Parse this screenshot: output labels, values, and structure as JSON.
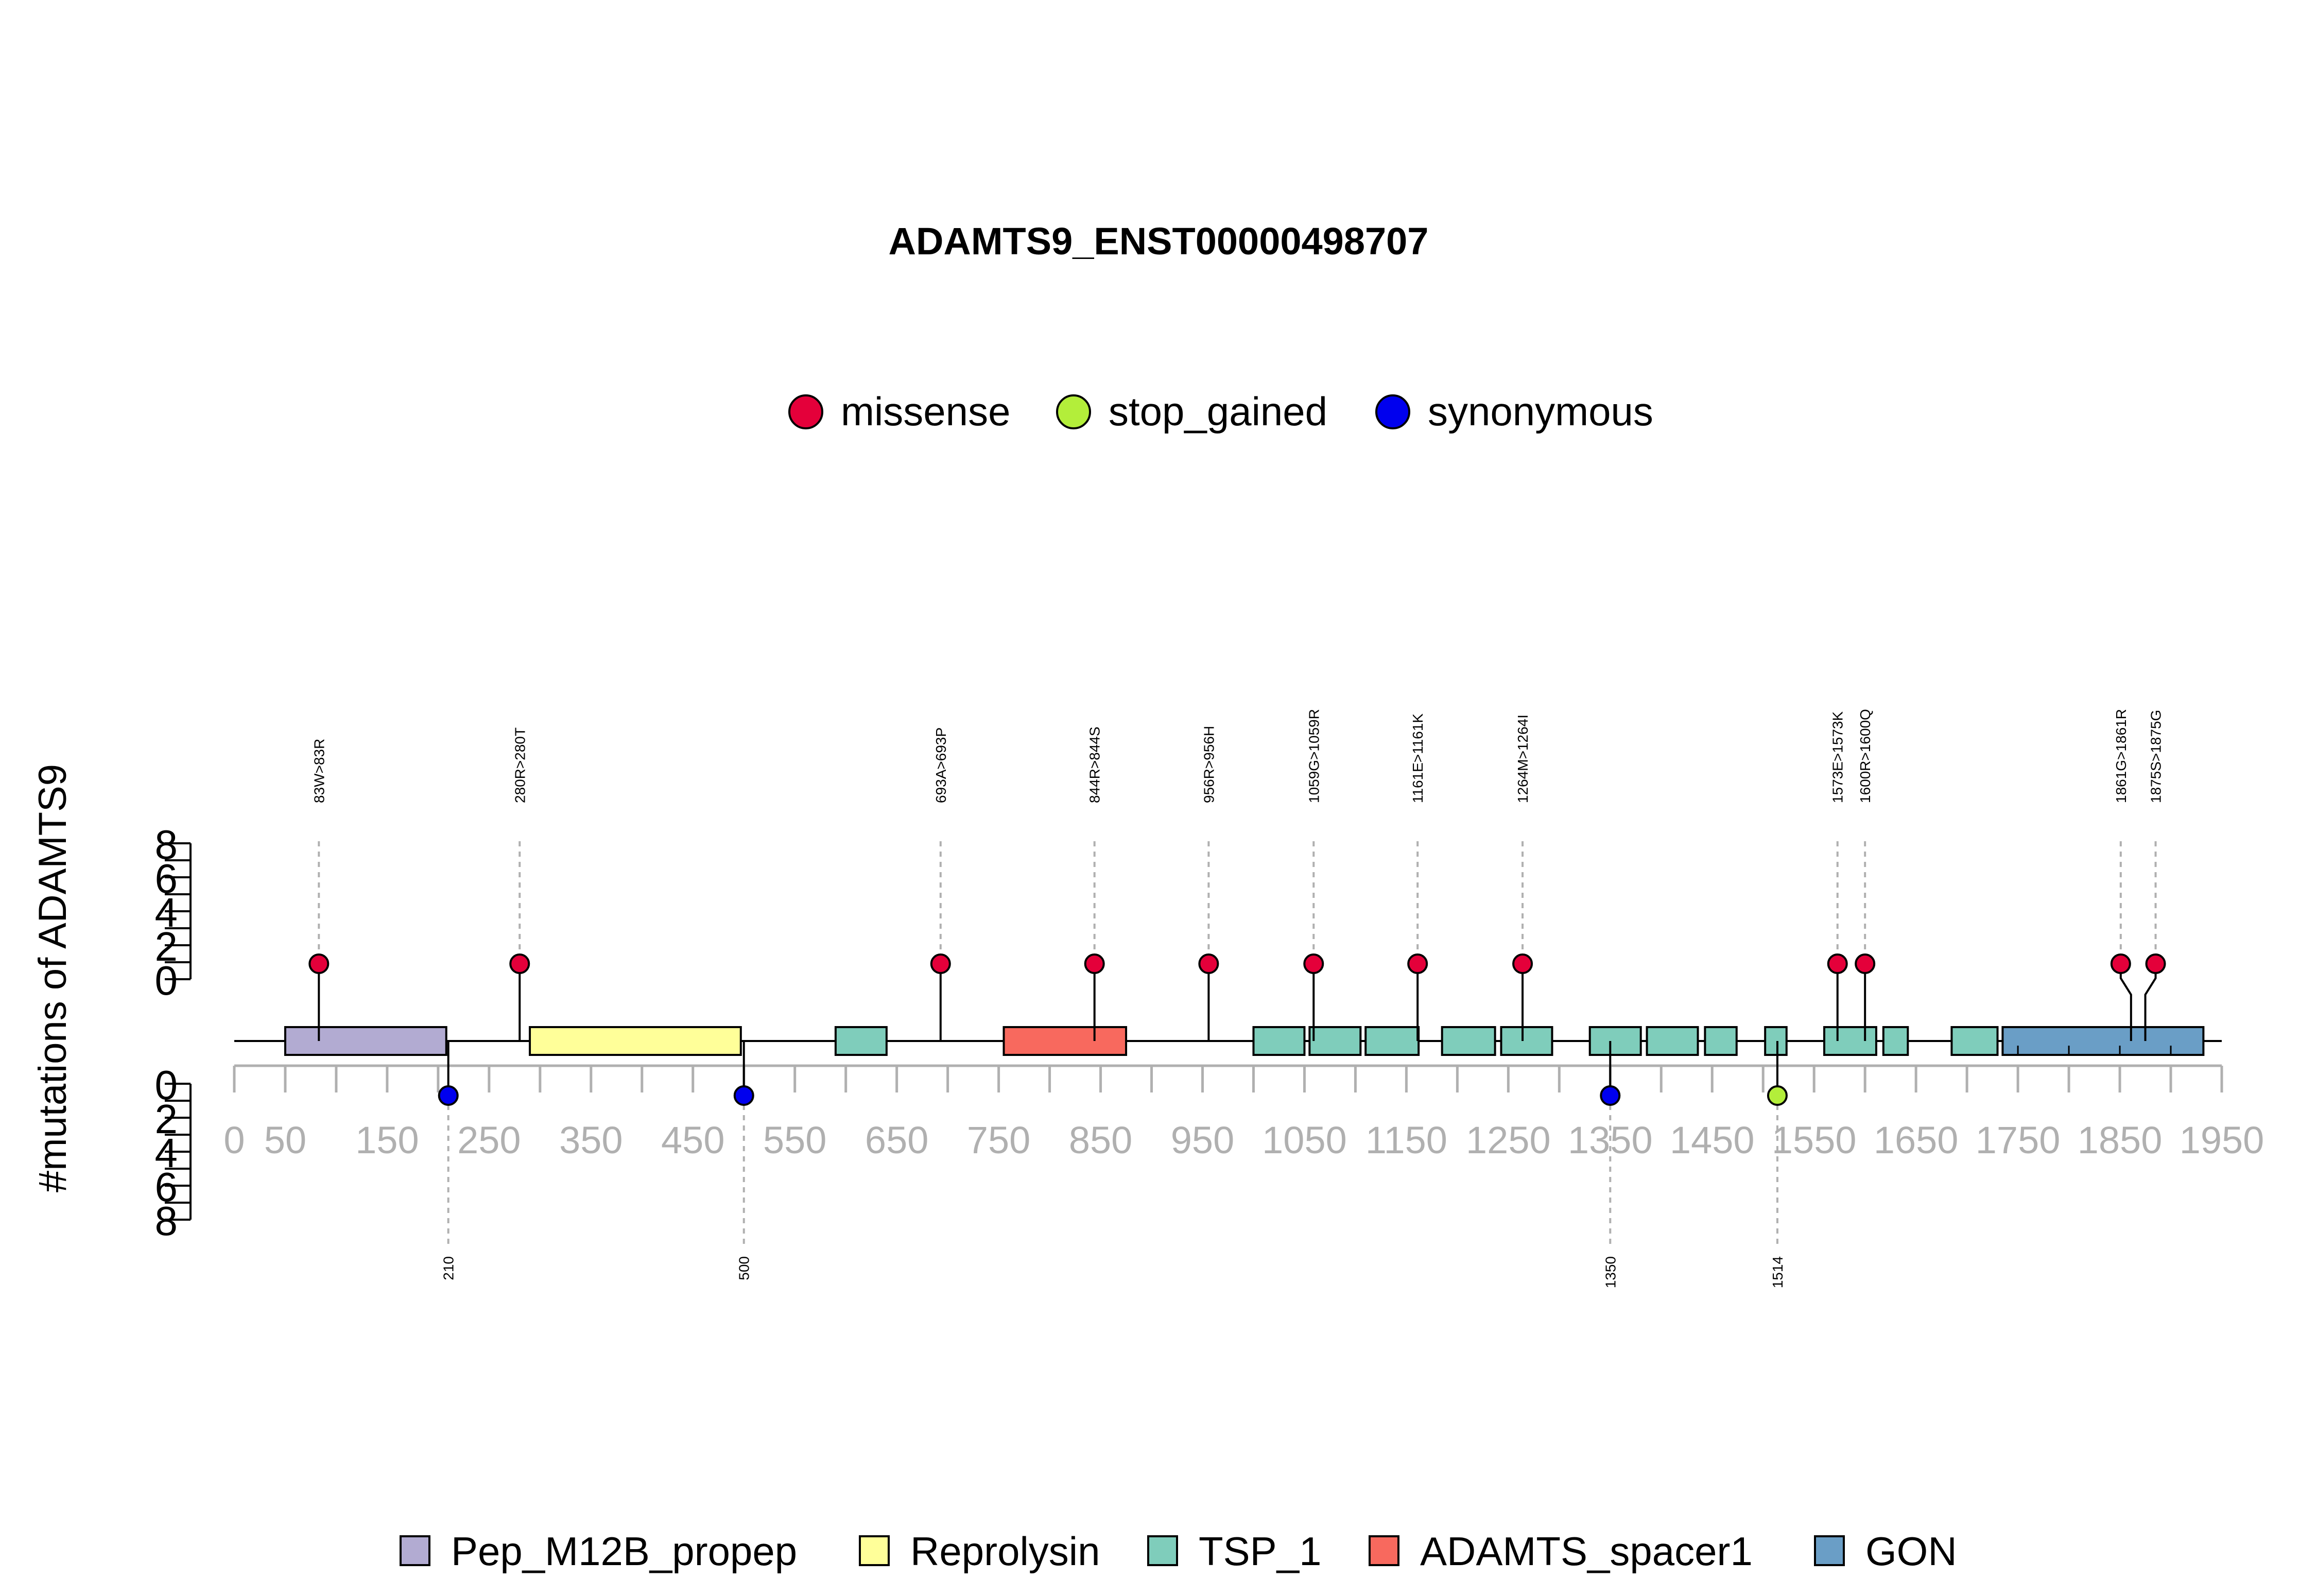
{
  "chart_data": {
    "type": "lollipop",
    "title": "ADAMTS9_ENST00000498707",
    "ylabel": "#mutations of ADAMTS9",
    "protein_length": 1935,
    "x_ticks": [
      0,
      50,
      150,
      250,
      350,
      450,
      550,
      650,
      750,
      850,
      950,
      1050,
      1150,
      1250,
      1350,
      1450,
      1550,
      1650,
      1750,
      1850,
      1950
    ],
    "y_ticks_top": [
      0,
      2,
      4,
      6,
      8
    ],
    "y_ticks_bottom": [
      0,
      2,
      4,
      6,
      8
    ],
    "ylim": [
      0,
      8
    ],
    "mutation_legend": [
      {
        "name": "missense",
        "color": "#e4003a"
      },
      {
        "name": "stop_gained",
        "color": "#b3ee3a"
      },
      {
        "name": "synonymous",
        "color": "#0000ee"
      }
    ],
    "domain_legend": [
      {
        "name": "Pep_M12B_propep",
        "color": "#b2abd2"
      },
      {
        "name": "Reprolysin",
        "color": "#ffff99"
      },
      {
        "name": "TSP_1",
        "color": "#7fcdbb"
      },
      {
        "name": "ADAMTS_spacer1",
        "color": "#f8695e"
      },
      {
        "name": "GON",
        "color": "#6a9ec6"
      }
    ],
    "domains": [
      {
        "name": "Pep_M12B_propep",
        "start": 50,
        "end": 208
      },
      {
        "name": "Reprolysin",
        "start": 290,
        "end": 497
      },
      {
        "name": "TSP_1",
        "start": 590,
        "end": 640
      },
      {
        "name": "ADAMTS_spacer1",
        "start": 755,
        "end": 875
      },
      {
        "name": "TSP_1",
        "start": 1000,
        "end": 1050
      },
      {
        "name": "TSP_1",
        "start": 1055,
        "end": 1105
      },
      {
        "name": "TSP_1",
        "start": 1110,
        "end": 1162
      },
      {
        "name": "TSP_1",
        "start": 1185,
        "end": 1237
      },
      {
        "name": "TSP_1",
        "start": 1243,
        "end": 1293
      },
      {
        "name": "TSP_1",
        "start": 1330,
        "end": 1380
      },
      {
        "name": "TSP_1",
        "start": 1386,
        "end": 1436
      },
      {
        "name": "TSP_1",
        "start": 1443,
        "end": 1474
      },
      {
        "name": "TSP_1",
        "start": 1502,
        "end": 1523
      },
      {
        "name": "TSP_1",
        "start": 1560,
        "end": 1611
      },
      {
        "name": "TSP_1",
        "start": 1618,
        "end": 1642
      },
      {
        "name": "TSP_1",
        "start": 1685,
        "end": 1730
      },
      {
        "name": "GON",
        "start": 1735,
        "end": 1932
      }
    ],
    "mutations_top": [
      {
        "label": "83W>83R",
        "position": 83,
        "count": 1,
        "type": "missense"
      },
      {
        "label": "280R>280T",
        "position": 280,
        "count": 1,
        "type": "missense"
      },
      {
        "label": "693A>693P",
        "position": 693,
        "count": 1,
        "type": "missense"
      },
      {
        "label": "844R>844S",
        "position": 844,
        "count": 1,
        "type": "missense"
      },
      {
        "label": "956R>956H",
        "position": 956,
        "count": 1,
        "type": "missense"
      },
      {
        "label": "1059G>1059R",
        "position": 1059,
        "count": 1,
        "type": "missense"
      },
      {
        "label": "1161E>1161K",
        "position": 1161,
        "count": 1,
        "type": "missense"
      },
      {
        "label": "1264M>1264I",
        "position": 1264,
        "count": 1,
        "type": "missense"
      },
      {
        "label": "1573E>1573K",
        "position": 1573,
        "count": 1,
        "type": "missense"
      },
      {
        "label": "1600R>1600Q",
        "position": 1600,
        "count": 1,
        "type": "missense"
      },
      {
        "label": "1861G>1861R",
        "position": 1861,
        "count": 1,
        "type": "missense"
      },
      {
        "label": "1875S>1875G",
        "position": 1875,
        "count": 1,
        "type": "missense"
      }
    ],
    "mutations_bottom": [
      {
        "label": "210",
        "position": 210,
        "count": 1,
        "type": "synonymous"
      },
      {
        "label": "500",
        "position": 500,
        "count": 1,
        "type": "synonymous"
      },
      {
        "label": "1350",
        "position": 1350,
        "count": 1,
        "type": "synonymous"
      },
      {
        "label": "1514",
        "position": 1514,
        "count": 1,
        "type": "stop_gained"
      }
    ]
  }
}
